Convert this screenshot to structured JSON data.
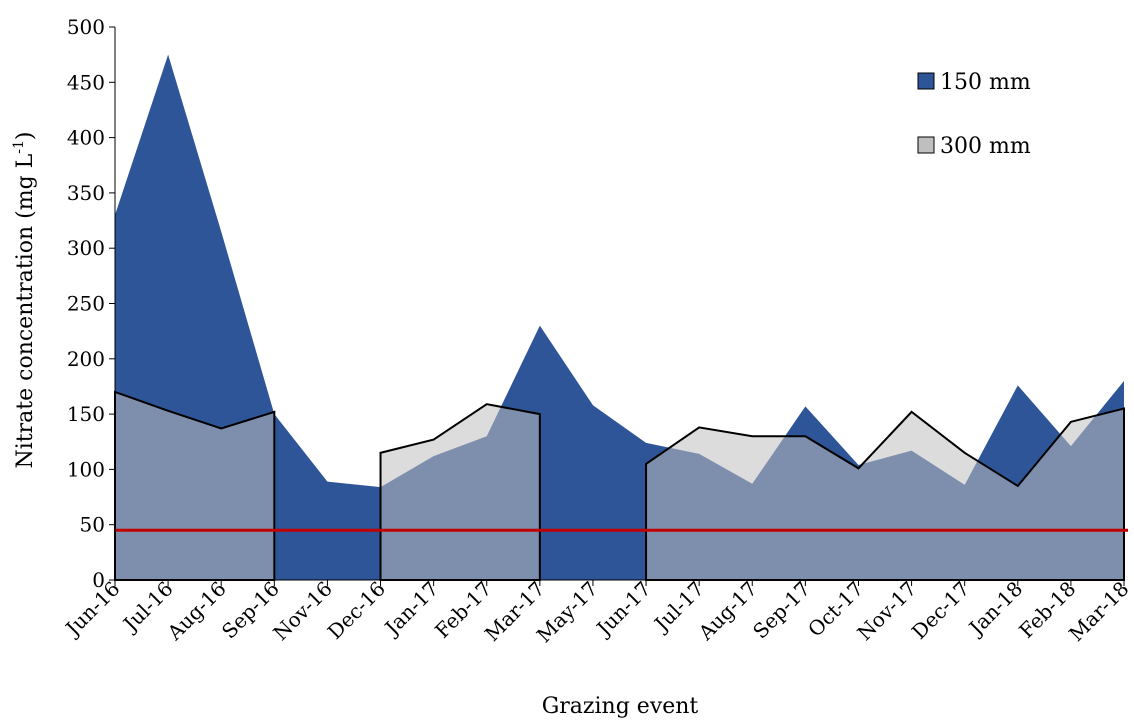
{
  "chart_data": {
    "type": "area",
    "title": "",
    "xlabel": "Grazing event",
    "ylabel_main": "Nitrate concentration (mg L",
    "ylabel_sup": "-1",
    "ylabel_close": ")",
    "ylim": [
      0,
      500
    ],
    "yticks": [
      0,
      50,
      100,
      150,
      200,
      250,
      300,
      350,
      400,
      450,
      500
    ],
    "categories": [
      "Jun-16",
      "Jul-16",
      "Aug-16",
      "Sep-16",
      "Nov-16",
      "Dec-16",
      "Jan-17",
      "Feb-17",
      "Mar-17",
      "May-17",
      "Jun-17",
      "Jul-17",
      "Aug-17",
      "Sep-17",
      "Oct-17",
      "Nov-17",
      "Dec-17",
      "Jan-18",
      "Feb-18",
      "Mar-18"
    ],
    "series": [
      {
        "name": "150 mm",
        "color": "#2e5597",
        "values": [
          330,
          475,
          315,
          150,
          89,
          84,
          112,
          130,
          230,
          158,
          124,
          114,
          87,
          157,
          104,
          117,
          86,
          176,
          121,
          180
        ]
      },
      {
        "name": "300 mm",
        "color": "#bfbfbf",
        "values": [
          170,
          153,
          137,
          152,
          null,
          115,
          127,
          159,
          150,
          null,
          105,
          138,
          130,
          130,
          101,
          152,
          115,
          85,
          143,
          155
        ]
      }
    ],
    "reference_line": {
      "value": 45,
      "color": "#c00000"
    },
    "legend_position": "top-right",
    "grid": false
  }
}
